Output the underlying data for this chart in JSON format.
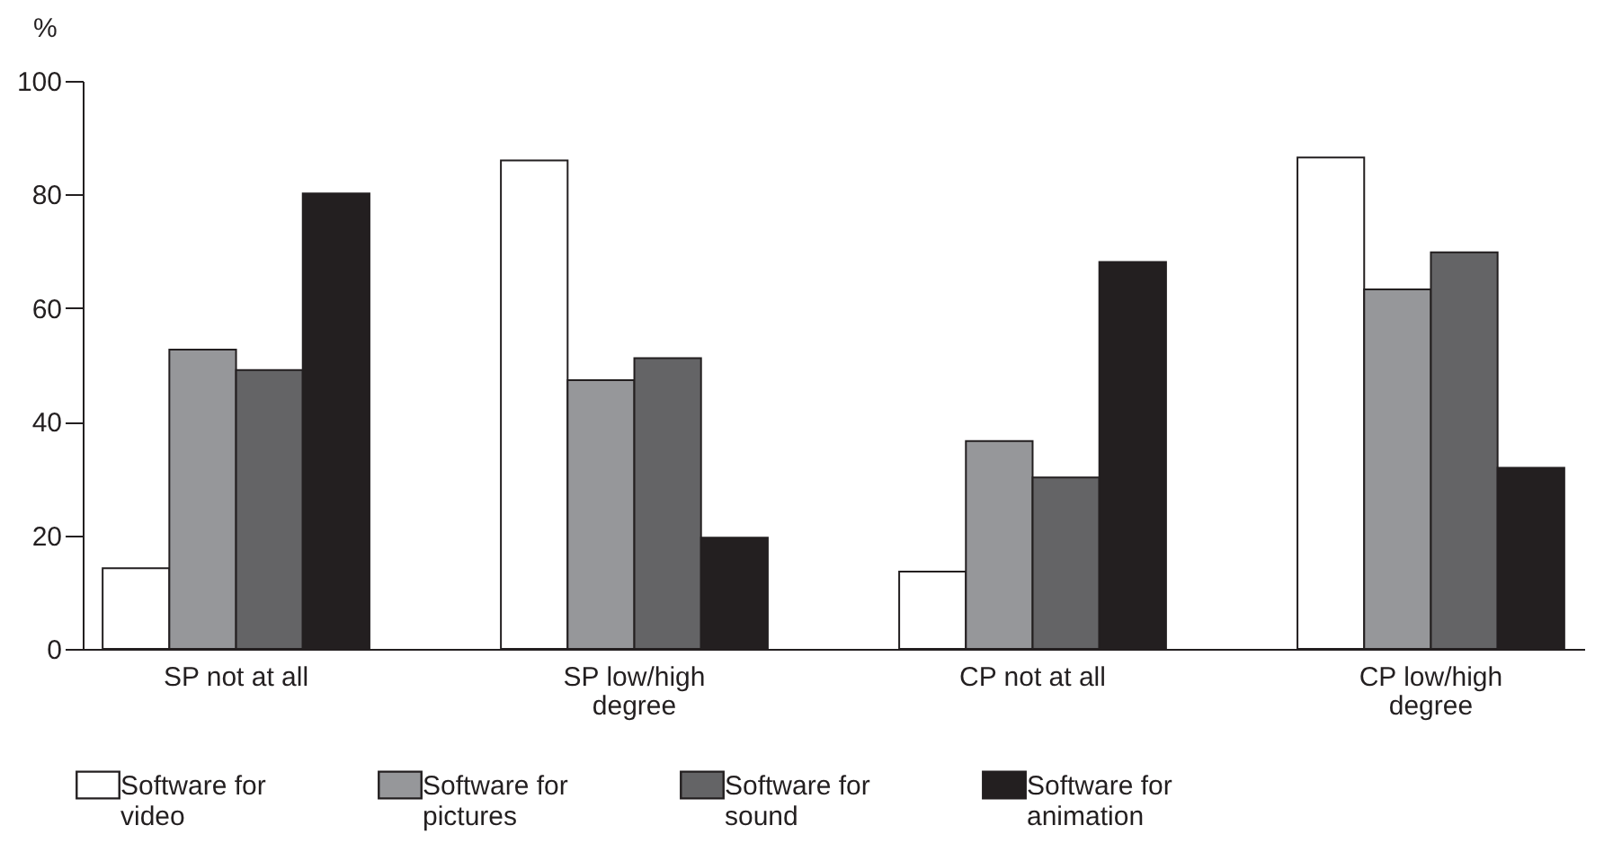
{
  "chart_data": {
    "type": "bar",
    "ylabel": "%",
    "categories": [
      "SP not at all",
      "SP low/high degree",
      "CP not at all",
      "CP low/high degree"
    ],
    "series": [
      {
        "name": "Software for video",
        "color": "#ffffff",
        "values": [
          14.2,
          86.0,
          13.6,
          86.5
        ]
      },
      {
        "name": "Software for pictures",
        "color": "#96979a",
        "values": [
          52.7,
          47.3,
          36.6,
          63.3
        ]
      },
      {
        "name": "Software for sound",
        "color": "#646466",
        "values": [
          49.1,
          51.2,
          30.2,
          69.8
        ]
      },
      {
        "name": "Software for animation",
        "color": "#231f20",
        "values": [
          80.2,
          19.6,
          68.1,
          31.9
        ]
      }
    ],
    "ylim": [
      0,
      100
    ],
    "yticks": [
      0,
      20,
      40,
      60,
      80,
      100
    ],
    "grid": false,
    "legend": "bottom"
  }
}
